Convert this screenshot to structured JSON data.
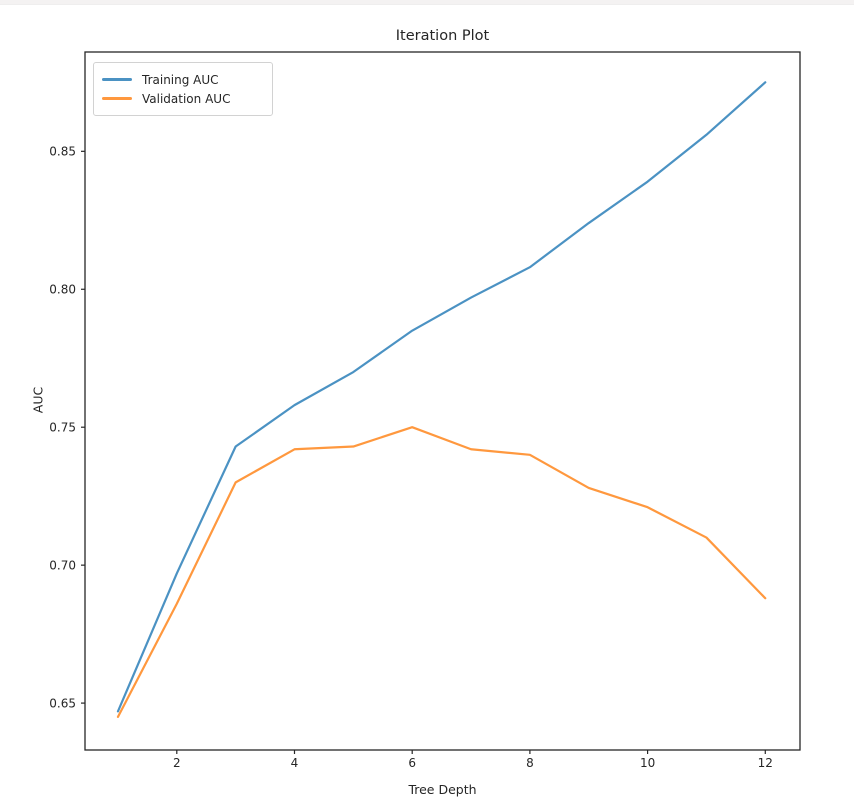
{
  "page": {
    "background_color": "#ffffff",
    "top_strip_color": "#f4f2f2"
  },
  "chart_data": {
    "type": "line",
    "title": "Iteration Plot",
    "xlabel": "Tree Depth",
    "ylabel": "AUC",
    "x": [
      1,
      2,
      3,
      4,
      5,
      6,
      7,
      8,
      9,
      10,
      11,
      12
    ],
    "series": [
      {
        "name": "Training AUC",
        "color": "#4b92c3",
        "values": [
          0.647,
          0.697,
          0.743,
          0.758,
          0.77,
          0.785,
          0.797,
          0.808,
          0.824,
          0.839,
          0.856,
          0.875
        ]
      },
      {
        "name": "Validation AUC",
        "color": "#ff983e",
        "values": [
          0.645,
          0.686,
          0.73,
          0.742,
          0.743,
          0.75,
          0.742,
          0.74,
          0.728,
          0.721,
          0.71,
          0.688
        ]
      }
    ],
    "xticks": [
      2,
      4,
      6,
      8,
      10,
      12
    ],
    "xtick_labels": [
      "2",
      "4",
      "6",
      "8",
      "10",
      "12"
    ],
    "yticks": [
      0.65,
      0.7,
      0.75,
      0.8,
      0.85
    ],
    "ytick_labels": [
      "0.65",
      "0.70",
      "0.75",
      "0.80",
      "0.85"
    ],
    "xlim": [
      0.44,
      12.59
    ],
    "ylim": [
      0.633,
      0.886
    ],
    "grid": false,
    "legend_position": "upper-left",
    "axis_color": "#262626"
  }
}
